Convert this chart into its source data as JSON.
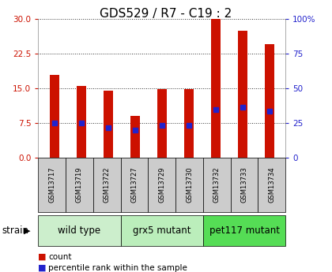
{
  "title": "GDS529 / R7 - C19 : 2",
  "samples": [
    "GSM13717",
    "GSM13719",
    "GSM13722",
    "GSM13727",
    "GSM13729",
    "GSM13730",
    "GSM13732",
    "GSM13733",
    "GSM13734"
  ],
  "counts": [
    18.0,
    15.5,
    14.5,
    9.0,
    14.8,
    14.9,
    30.0,
    27.5,
    24.5
  ],
  "percentile_values": [
    7.5,
    7.5,
    6.5,
    6.0,
    7.0,
    7.0,
    10.5,
    11.0,
    10.0
  ],
  "ylim_left": [
    0,
    30
  ],
  "ylim_right": [
    0,
    100
  ],
  "yticks_left": [
    0,
    7.5,
    15,
    22.5,
    30
  ],
  "yticks_right": [
    0,
    25,
    50,
    75,
    100
  ],
  "ytick_labels_right": [
    "0",
    "25",
    "50",
    "75",
    "100%"
  ],
  "bar_color": "#cc1100",
  "dot_color": "#2222cc",
  "groups": [
    {
      "label": "wild type",
      "indices": [
        0,
        1,
        2
      ],
      "color": "#cceecc"
    },
    {
      "label": "grx5 mutant",
      "indices": [
        3,
        4,
        5
      ],
      "color": "#bbeebb"
    },
    {
      "label": "pet117 mutant",
      "indices": [
        6,
        7,
        8
      ],
      "color": "#55dd55"
    }
  ],
  "strain_label": "strain",
  "legend_count_label": "count",
  "legend_pct_label": "percentile rank within the sample",
  "title_fontsize": 11,
  "tick_fontsize": 7.5,
  "axis_color_left": "#cc1100",
  "axis_color_right": "#2222cc",
  "sample_box_color": "#cccccc",
  "bar_width": 0.35
}
